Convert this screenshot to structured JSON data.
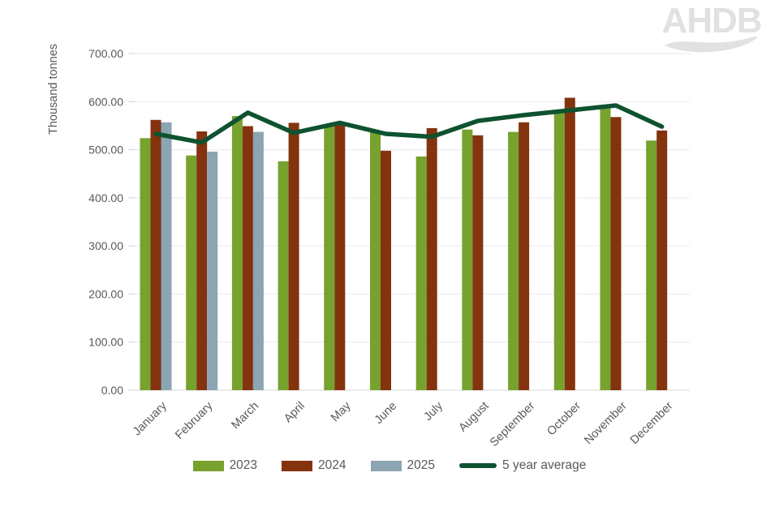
{
  "watermark": {
    "text": "AHDB"
  },
  "chart_data": {
    "type": "bar",
    "title": "",
    "xlabel": "",
    "ylabel": "Thousand tonnes",
    "ylim": [
      0,
      700
    ],
    "y_tick_step": 100,
    "y_tick_labels": [
      "700.00",
      "600.00",
      "500.00",
      "400.00",
      "300.00",
      "200.00",
      "100.00",
      "0.00"
    ],
    "grid": true,
    "legend_position": "bottom",
    "categories": [
      "January",
      "February",
      "March",
      "April",
      "May",
      "June",
      "July",
      "August",
      "September",
      "October",
      "November",
      "December"
    ],
    "series": [
      {
        "name": "2023",
        "type": "bar",
        "color": "#76A22D",
        "values": [
          524,
          488,
          570,
          476,
          551,
          537,
          486,
          542,
          537,
          579,
          586,
          519
        ]
      },
      {
        "name": "2024",
        "type": "bar",
        "color": "#84330F",
        "values": [
          562,
          538,
          549,
          556,
          553,
          498,
          545,
          530,
          557,
          608,
          568,
          540
        ]
      },
      {
        "name": "2025",
        "type": "bar",
        "color": "#8BA6B2",
        "values": [
          557,
          496,
          537,
          null,
          null,
          null,
          null,
          null,
          null,
          null,
          null,
          null
        ]
      },
      {
        "name": "5 year average",
        "type": "line",
        "color": "#0E5230",
        "values": [
          533,
          515,
          577,
          535,
          556,
          533,
          527,
          560,
          572,
          582,
          592,
          548
        ]
      }
    ],
    "colors": {
      "axis_text": "#595959",
      "gridline": "#E9E9E9",
      "axis_line": "#D9D9D9",
      "tick": "#D0D0D0",
      "watermark": "#E1E1E1"
    }
  }
}
